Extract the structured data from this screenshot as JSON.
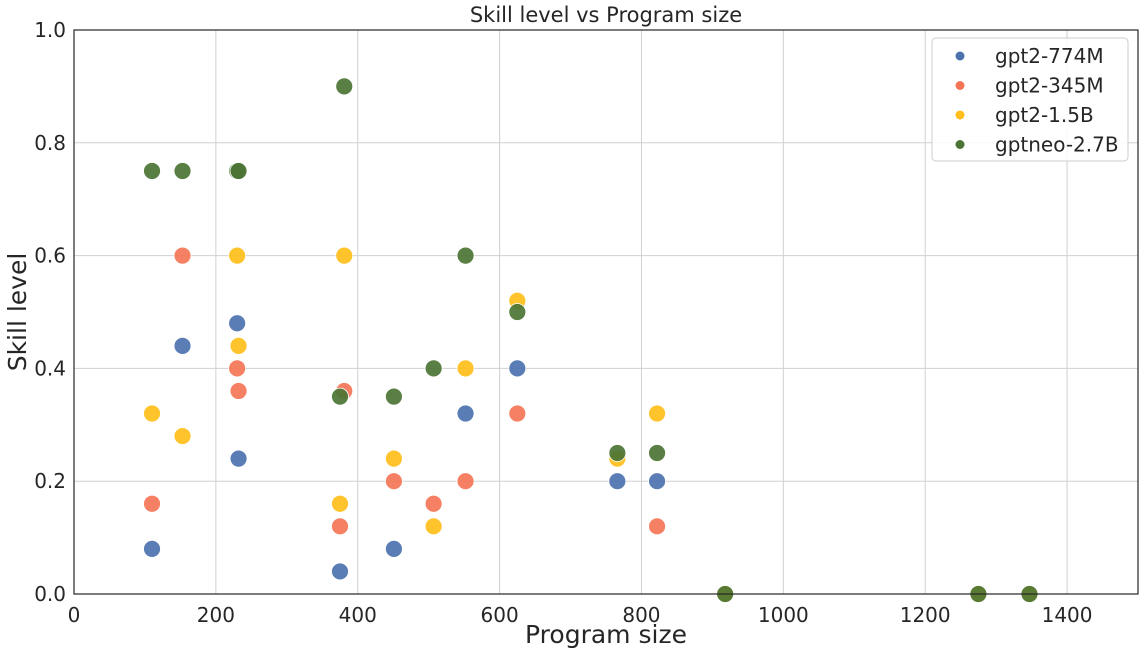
{
  "chart_data": {
    "type": "scatter",
    "title": "Skill level vs Program size",
    "xlabel": "Program size",
    "ylabel": "Skill level",
    "xlim": [
      0,
      1500
    ],
    "ylim": [
      0,
      1.0
    ],
    "xticks": [
      0,
      200,
      400,
      600,
      800,
      1000,
      1200,
      1400
    ],
    "yticks": [
      0.0,
      0.2,
      0.4,
      0.6,
      0.8,
      1.0
    ],
    "xtick_labels": [
      "0",
      "200",
      "400",
      "600",
      "800",
      "1000",
      "1200",
      "1400"
    ],
    "ytick_labels": [
      "0.0",
      "0.2",
      "0.4",
      "0.6",
      "0.8",
      "1.0"
    ],
    "grid": true,
    "legend_position": "top-right",
    "series": [
      {
        "name": "gpt2-774M",
        "color": "#4c72b0",
        "points": [
          [
            110,
            0.08
          ],
          [
            153,
            0.44
          ],
          [
            230,
            0.48
          ],
          [
            232,
            0.24
          ],
          [
            375,
            0.04
          ],
          [
            451,
            0.08
          ],
          [
            552,
            0.32
          ],
          [
            625,
            0.4
          ],
          [
            766,
            0.2
          ],
          [
            822,
            0.2
          ],
          [
            918,
            0.0
          ],
          [
            1275,
            0.0
          ],
          [
            1347,
            0.0
          ]
        ]
      },
      {
        "name": "gpt2-345M",
        "color": "#f47556",
        "points": [
          [
            110,
            0.16
          ],
          [
            153,
            0.6
          ],
          [
            230,
            0.4
          ],
          [
            232,
            0.36
          ],
          [
            375,
            0.12
          ],
          [
            381,
            0.36
          ],
          [
            451,
            0.2
          ],
          [
            507,
            0.16
          ],
          [
            552,
            0.2
          ],
          [
            625,
            0.32
          ],
          [
            822,
            0.12
          ],
          [
            918,
            0.0
          ],
          [
            1275,
            0.0
          ],
          [
            1347,
            0.0
          ]
        ]
      },
      {
        "name": "gpt2-1.5B",
        "color": "#ffbe1a",
        "points": [
          [
            110,
            0.32
          ],
          [
            153,
            0.28
          ],
          [
            230,
            0.6
          ],
          [
            232,
            0.44
          ],
          [
            375,
            0.16
          ],
          [
            381,
            0.6
          ],
          [
            451,
            0.24
          ],
          [
            507,
            0.12
          ],
          [
            552,
            0.4
          ],
          [
            625,
            0.52
          ],
          [
            766,
            0.24
          ],
          [
            822,
            0.32
          ],
          [
            918,
            0.0
          ],
          [
            1275,
            0.0
          ],
          [
            1347,
            0.0
          ]
        ]
      },
      {
        "name": "gptneo-2.7B",
        "color": "#4b7434",
        "points": [
          [
            110,
            0.75
          ],
          [
            153,
            0.75
          ],
          [
            230,
            0.75
          ],
          [
            232,
            0.75
          ],
          [
            375,
            0.35
          ],
          [
            381,
            0.9
          ],
          [
            451,
            0.35
          ],
          [
            507,
            0.4
          ],
          [
            552,
            0.6
          ],
          [
            625,
            0.5
          ],
          [
            766,
            0.25
          ],
          [
            822,
            0.25
          ],
          [
            918,
            0.0
          ],
          [
            1275,
            0.0
          ],
          [
            1347,
            0.0
          ]
        ]
      }
    ]
  }
}
